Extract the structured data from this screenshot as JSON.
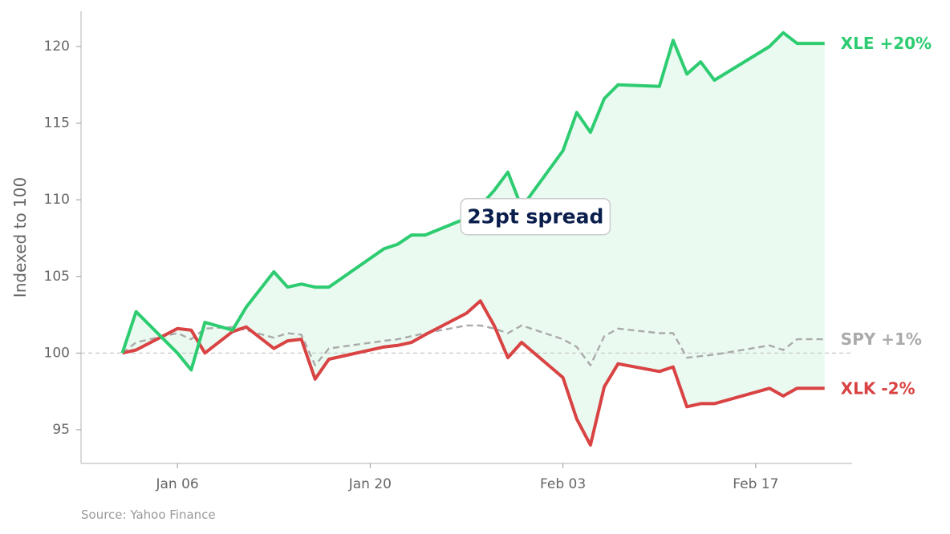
{
  "chart_data": {
    "type": "line",
    "ylabel": "Indexed to 100",
    "xlabel": "",
    "ylim": [
      92.8,
      122.3
    ],
    "xlim": [
      "2024-12-30",
      "2025-02-24"
    ],
    "y_ticks": [
      95,
      100,
      105,
      110,
      115,
      120
    ],
    "x_ticks": [
      {
        "date": "2025-01-06",
        "label": "Jan 06"
      },
      {
        "date": "2025-01-20",
        "label": "Jan 20"
      },
      {
        "date": "2025-02-03",
        "label": "Feb 03"
      },
      {
        "date": "2025-02-17",
        "label": "Feb 17"
      }
    ],
    "reference_line": 100,
    "grid": false,
    "x": [
      "2025-01-02",
      "2025-01-03",
      "2025-01-06",
      "2025-01-07",
      "2025-01-08",
      "2025-01-10",
      "2025-01-11",
      "2025-01-13",
      "2025-01-14",
      "2025-01-15",
      "2025-01-16",
      "2025-01-17",
      "2025-01-21",
      "2025-01-22",
      "2025-01-23",
      "2025-01-24",
      "2025-01-27",
      "2025-01-28",
      "2025-01-29",
      "2025-01-30",
      "2025-01-31",
      "2025-02-03",
      "2025-02-04",
      "2025-02-05",
      "2025-02-06",
      "2025-02-07",
      "2025-02-10",
      "2025-02-11",
      "2025-02-12",
      "2025-02-13",
      "2025-02-14",
      "2025-02-18",
      "2025-02-19",
      "2025-02-20",
      "2025-02-21",
      "2025-02-22"
    ],
    "series": [
      {
        "name": "XLE",
        "color": "#2ecc71",
        "end_label": "XLE +20%",
        "values": [
          100.0,
          102.7,
          100.0,
          98.9,
          102.0,
          101.5,
          103.0,
          105.3,
          104.3,
          104.5,
          104.3,
          104.3,
          106.8,
          107.1,
          107.7,
          107.7,
          108.8,
          109.6,
          110.6,
          111.8,
          109.5,
          113.2,
          115.7,
          114.4,
          116.6,
          117.5,
          117.4,
          120.4,
          118.2,
          119.0,
          117.8,
          120.0,
          120.9,
          120.2,
          120.2,
          120.2
        ]
      },
      {
        "name": "XLK",
        "color": "#d94343",
        "end_label": "XLK -2%",
        "values": [
          100.0,
          100.2,
          101.6,
          101.5,
          100.0,
          101.4,
          101.7,
          100.3,
          100.8,
          100.9,
          98.3,
          99.6,
          100.4,
          100.5,
          100.7,
          101.2,
          102.6,
          103.4,
          101.8,
          99.7,
          100.7,
          98.4,
          95.7,
          94.0,
          97.8,
          99.3,
          98.8,
          99.1,
          96.5,
          96.7,
          96.7,
          97.7,
          97.2,
          97.7,
          97.7,
          97.7
        ]
      },
      {
        "name": "SPY",
        "color": "#aaaaaa",
        "end_label": "SPY +1%",
        "dashed": true,
        "values": [
          100.0,
          100.7,
          101.3,
          100.9,
          101.6,
          101.7,
          101.5,
          101.0,
          101.3,
          101.2,
          99.2,
          100.3,
          100.8,
          100.9,
          101.1,
          101.3,
          101.8,
          101.8,
          101.6,
          101.3,
          101.8,
          100.9,
          100.4,
          99.2,
          101.1,
          101.6,
          101.3,
          101.3,
          99.7,
          99.8,
          99.9,
          100.5,
          100.2,
          100.9,
          100.9,
          100.9
        ]
      }
    ],
    "annotation": "23pt spread",
    "annotation_position_date": "2025-02-01",
    "annotation_position_value": 108.9
  },
  "source": "Source: Yahoo Finance"
}
